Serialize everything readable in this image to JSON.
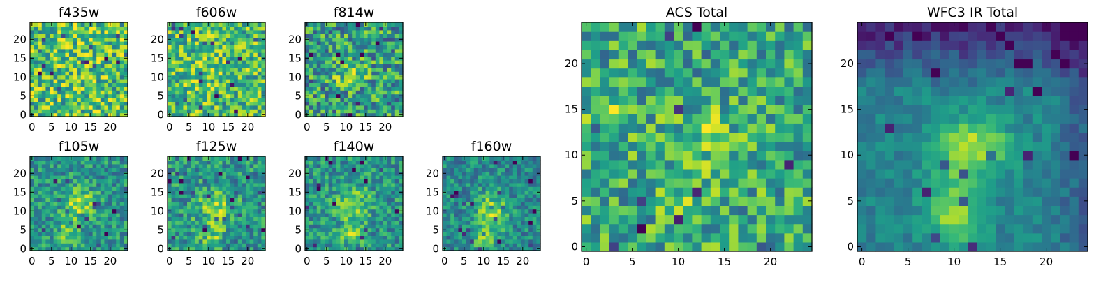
{
  "chart_data": [
    {
      "type": "heatmap",
      "title": "f435w",
      "colormap": "viridis",
      "grid": false,
      "size": 25,
      "xlim": [
        0,
        24
      ],
      "ylim": [
        0,
        24
      ],
      "xticks": [
        0,
        5,
        10,
        15,
        20
      ],
      "yticks": [
        0,
        5,
        10,
        15,
        20
      ],
      "pattern": {
        "noise": 0.32,
        "blobs": [
          {
            "x": 9,
            "y": 14,
            "sx": 10,
            "sy": 8,
            "amp": 0.05
          }
        ],
        "base": 0.7
      }
    },
    {
      "type": "heatmap",
      "title": "f606w",
      "colormap": "viridis",
      "grid": false,
      "size": 25,
      "xlim": [
        0,
        24
      ],
      "ylim": [
        0,
        24
      ],
      "xticks": [
        0,
        5,
        10,
        15,
        20
      ],
      "yticks": [
        0,
        5,
        10,
        15,
        20
      ],
      "pattern": {
        "noise": 0.3,
        "blobs": [
          {
            "x": 12,
            "y": 10,
            "sx": 9,
            "sy": 9,
            "amp": 0.05
          }
        ],
        "base": 0.68
      }
    },
    {
      "type": "heatmap",
      "title": "f814w",
      "colormap": "viridis",
      "grid": false,
      "size": 25,
      "xlim": [
        0,
        24
      ],
      "ylim": [
        0,
        24
      ],
      "xticks": [
        0,
        5,
        10,
        15,
        20
      ],
      "yticks": [
        0,
        5,
        10,
        15,
        20
      ],
      "pattern": {
        "noise": 0.32,
        "blobs": [
          {
            "x": 11,
            "y": 11,
            "sx": 4,
            "sy": 3,
            "amp": 0.28
          }
        ],
        "base": 0.55
      }
    },
    {
      "type": "heatmap",
      "title": "f105w",
      "colormap": "viridis",
      "grid": false,
      "size": 25,
      "xlim": [
        0,
        24
      ],
      "ylim": [
        0,
        24
      ],
      "xticks": [
        0,
        5,
        10,
        15,
        20
      ],
      "yticks": [
        0,
        5,
        10,
        15,
        20
      ],
      "pattern": {
        "noise": 0.22,
        "blobs": [
          {
            "x": 12,
            "y": 12,
            "sx": 4,
            "sy": 4,
            "amp": 0.35
          },
          {
            "x": 9,
            "y": 4,
            "sx": 3,
            "sy": 3,
            "amp": 0.3
          }
        ],
        "base": 0.52
      }
    },
    {
      "type": "heatmap",
      "title": "f125w",
      "colormap": "viridis",
      "grid": false,
      "size": 25,
      "xlim": [
        0,
        24
      ],
      "ylim": [
        0,
        24
      ],
      "xticks": [
        0,
        5,
        10,
        15,
        20
      ],
      "yticks": [
        0,
        5,
        10,
        15,
        20
      ],
      "pattern": {
        "noise": 0.24,
        "blobs": [
          {
            "x": 12,
            "y": 11,
            "sx": 5,
            "sy": 5,
            "amp": 0.28
          },
          {
            "x": 11,
            "y": 3,
            "sx": 3,
            "sy": 3,
            "amp": 0.22
          }
        ],
        "base": 0.52
      }
    },
    {
      "type": "heatmap",
      "title": "f140w",
      "colormap": "viridis",
      "grid": false,
      "size": 25,
      "xlim": [
        0,
        24
      ],
      "ylim": [
        0,
        24
      ],
      "xticks": [
        0,
        5,
        10,
        15,
        20
      ],
      "yticks": [
        0,
        5,
        10,
        15,
        20
      ],
      "pattern": {
        "noise": 0.22,
        "blobs": [
          {
            "x": 12,
            "y": 12,
            "sx": 4,
            "sy": 4,
            "amp": 0.35
          },
          {
            "x": 11,
            "y": 4,
            "sx": 3,
            "sy": 3,
            "amp": 0.28
          }
        ],
        "base": 0.52
      }
    },
    {
      "type": "heatmap",
      "title": "f160w",
      "colormap": "viridis",
      "grid": false,
      "size": 25,
      "xlim": [
        0,
        24
      ],
      "ylim": [
        0,
        24
      ],
      "xticks": [
        0,
        5,
        10,
        15,
        20
      ],
      "yticks": [
        0,
        5,
        10,
        15,
        20
      ],
      "pattern": {
        "noise": 0.2,
        "blobs": [
          {
            "x": 12,
            "y": 10,
            "sx": 4,
            "sy": 5,
            "amp": 0.35
          },
          {
            "x": 10,
            "y": 3,
            "sx": 3,
            "sy": 3,
            "amp": 0.28
          }
        ],
        "base": 0.48
      }
    },
    {
      "type": "heatmap",
      "title": "ACS Total",
      "colormap": "viridis",
      "grid": false,
      "size": 25,
      "xlim": [
        0,
        24
      ],
      "ylim": [
        0,
        24
      ],
      "xticks": [
        0,
        5,
        10,
        15,
        20
      ],
      "yticks": [
        0,
        5,
        10,
        15,
        20
      ],
      "pattern": {
        "noise": 0.28,
        "blobs": [
          {
            "x": 12,
            "y": 12,
            "sx": 4,
            "sy": 3,
            "amp": 0.25
          },
          {
            "x": 2,
            "y": 15,
            "sx": 3,
            "sy": 2,
            "amp": 0.18
          },
          {
            "x": 11,
            "y": 5,
            "sx": 4,
            "sy": 3,
            "amp": 0.12
          }
        ],
        "base": 0.6
      }
    },
    {
      "type": "heatmap",
      "title": "WFC3 IR Total",
      "colormap": "viridis",
      "grid": false,
      "size": 25,
      "xlim": [
        0,
        24
      ],
      "ylim": [
        0,
        24
      ],
      "xticks": [
        0,
        5,
        10,
        15,
        20
      ],
      "yticks": [
        0,
        5,
        10,
        15,
        20
      ],
      "pattern": {
        "noise": 0.1,
        "blobs": [
          {
            "x": 12,
            "y": 11,
            "sx": 4,
            "sy": 3,
            "amp": 0.45
          },
          {
            "x": 10,
            "y": 4,
            "sx": 3,
            "sy": 4,
            "amp": 0.38
          }
        ],
        "base": 0.45,
        "topDark": true
      }
    }
  ],
  "colors": {
    "viridis_stops": [
      "#440154",
      "#482878",
      "#3e4a89",
      "#31688e",
      "#26828e",
      "#1f9e89",
      "#35b779",
      "#6ece58",
      "#b5de2b",
      "#fde725"
    ]
  }
}
